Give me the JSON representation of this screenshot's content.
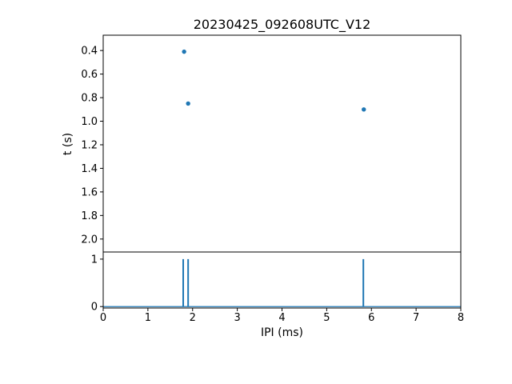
{
  "accent_color": "#1f77b4",
  "chart_data": [
    {
      "type": "scatter",
      "title": "20230425_092608UTC_V12",
      "xlabel": "",
      "ylabel": "t (s)",
      "x": [
        1.81,
        1.9,
        5.83
      ],
      "y": [
        0.41,
        0.85,
        0.9
      ],
      "xlim": [
        0,
        8
      ],
      "ylim": [
        0.27,
        2.11
      ],
      "y_inverted": true,
      "yticks": [
        0.4,
        0.6,
        0.8,
        1.0,
        1.2,
        1.4,
        1.6,
        1.8,
        2.0
      ],
      "yticklabels": [
        "0.4",
        "0.6",
        "0.8",
        "1.0",
        "1.2",
        "1.4",
        "1.6",
        "1.8",
        "2.0"
      ],
      "marker_color": "#1f77b4",
      "grid": false,
      "legend": false
    },
    {
      "type": "bar",
      "title": "",
      "xlabel": "IPI (ms)",
      "ylabel": "",
      "x": [
        1.79,
        1.9,
        5.82
      ],
      "heights": [
        1,
        1,
        1
      ],
      "xlim": [
        0,
        8
      ],
      "ylim": [
        -0.03,
        1.15
      ],
      "yticks": [
        0,
        1
      ],
      "yticklabels": [
        "0",
        "1"
      ],
      "xticks": [
        0,
        1,
        2,
        3,
        4,
        5,
        6,
        7,
        8
      ],
      "xticklabels": [
        "0",
        "1",
        "2",
        "3",
        "4",
        "5",
        "6",
        "7",
        "8"
      ],
      "bar_color": "#1f77b4",
      "baseline": true,
      "grid": false,
      "legend": false
    }
  ]
}
